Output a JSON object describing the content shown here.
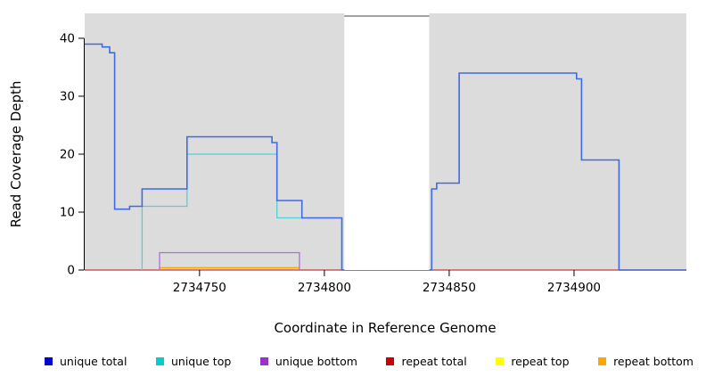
{
  "chart_data": {
    "type": "line",
    "title": "",
    "xlabel": "Coordinate in Reference Genome",
    "ylabel": "Read Coverage Depth",
    "xlim": [
      2734704,
      2734945
    ],
    "ylim": [
      0,
      44.3
    ],
    "x_ticks": [
      2734750,
      2734800,
      2734850,
      2734900
    ],
    "y_ticks": [
      0,
      10,
      20,
      30,
      40
    ],
    "grid": false,
    "legend_position": "bottom",
    "panel_bg": "#DCDCDC",
    "gap_region": {
      "x_start": 2734808,
      "x_end": 2734842,
      "fill": "#FFFFFF",
      "border_top": "#444444"
    },
    "draw_order": [
      4,
      3,
      5,
      2,
      1,
      0
    ],
    "series": [
      {
        "name": "unique total",
        "color": "#0000CD",
        "line_color": "#4169E1",
        "line_width": 1.6,
        "segments": [
          [
            2734704,
            2734711,
            39
          ],
          [
            2734711,
            2734714,
            38.5
          ],
          [
            2734714,
            2734716,
            37.5
          ],
          [
            2734716,
            2734722,
            10.5
          ],
          [
            2734722,
            2734727,
            11
          ],
          [
            2734727,
            2734745,
            14
          ],
          [
            2734745,
            2734779,
            23
          ],
          [
            2734779,
            2734781,
            22
          ],
          [
            2734781,
            2734791,
            12
          ],
          [
            2734791,
            2734807,
            9
          ],
          [
            2734807,
            2734843,
            0
          ],
          [
            2734843,
            2734845,
            14
          ],
          [
            2734845,
            2734854,
            15
          ],
          [
            2734854,
            2734901,
            34
          ],
          [
            2734901,
            2734903,
            33
          ],
          [
            2734903,
            2734918,
            19
          ],
          [
            2734918,
            2734945,
            0
          ]
        ]
      },
      {
        "name": "unique top",
        "color": "#00CED1",
        "line_color": "#55CFCF",
        "line_width": 1.3,
        "segments": [
          [
            2734727,
            2734727,
            0
          ],
          [
            2734727,
            2734745,
            11
          ],
          [
            2734745,
            2734781,
            20
          ],
          [
            2734781,
            2734807,
            9
          ],
          [
            2734807,
            2734807,
            0
          ]
        ]
      },
      {
        "name": "unique bottom",
        "color": "#9932CC",
        "line_color": "#B06FD8",
        "line_width": 1.3,
        "segments": [
          [
            2734734,
            2734734,
            0
          ],
          [
            2734734,
            2734790,
            3
          ],
          [
            2734790,
            2734790,
            0
          ]
        ]
      },
      {
        "name": "repeat total",
        "color": "#CC0000",
        "line_color": "#C43B5E",
        "line_width": 1.3,
        "segments": [
          [
            2734704,
            2734945,
            0
          ]
        ]
      },
      {
        "name": "repeat top",
        "color": "#FFFF00",
        "line_color": "#FFFF00",
        "line_width": 1.3,
        "segments": [
          [
            2734704,
            2734945,
            0
          ]
        ]
      },
      {
        "name": "repeat bottom",
        "color": "#FFA500",
        "line_color": "#FFA500",
        "line_width": 1.3,
        "segments": [
          [
            2734734,
            2734734,
            0
          ],
          [
            2734734,
            2734790,
            0.4
          ],
          [
            2734790,
            2734790,
            0
          ]
        ]
      }
    ]
  }
}
